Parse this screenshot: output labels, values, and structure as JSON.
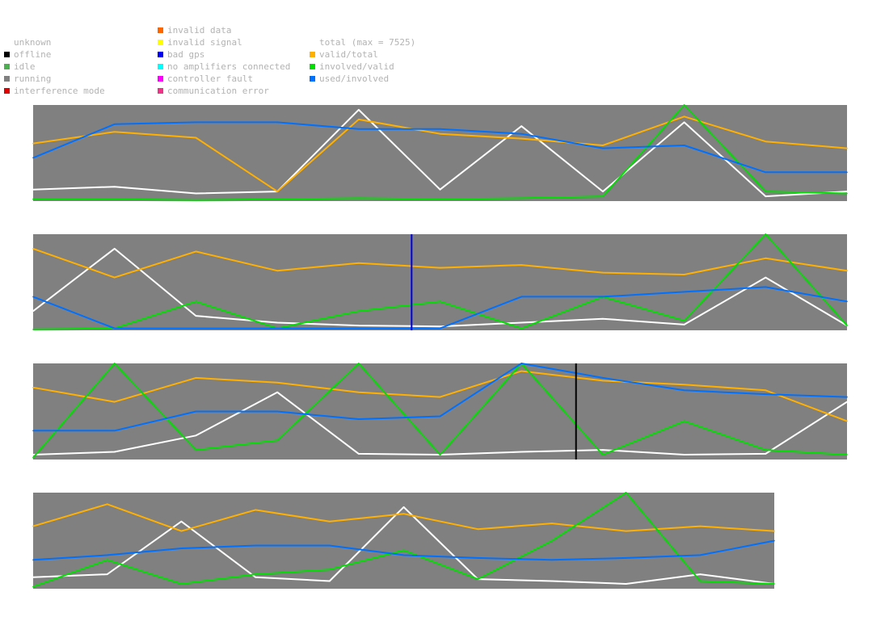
{
  "legend": {
    "columns": [
      [
        {
          "label": "unknown",
          "color": null
        },
        {
          "label": "offline",
          "color": "#000000"
        },
        {
          "label": "idle",
          "color": "#4caf50"
        },
        {
          "label": "running",
          "color": "#808080"
        },
        {
          "label": "interference mode",
          "color": "#e00000"
        }
      ],
      [
        {
          "label": "invalid data",
          "color": "#ff6600"
        },
        {
          "label": "invalid signal",
          "color": "#ffff00"
        },
        {
          "label": "bad gps",
          "color": "#0000ee"
        },
        {
          "label": "no amplifiers connected",
          "color": "#00ffff"
        },
        {
          "label": "controller fault",
          "color": "#ff00ff"
        },
        {
          "label": "communication error",
          "color": "#ee3388"
        }
      ],
      [
        {
          "label": "total (max = 7525)",
          "color": null
        },
        {
          "label": "valid/total",
          "color": "#ffb000"
        },
        {
          "label": "involved/valid",
          "color": "#00e000"
        },
        {
          "label": "used/involved",
          "color": "#0070ff"
        }
      ]
    ]
  },
  "colors": {
    "panel_background": "#808080",
    "total": "#ffffff",
    "valid_total": "#ffb000",
    "involved_valid": "#00e000",
    "used_involved": "#0070ff",
    "bad_gps_marker": "#0000ee",
    "offline_marker": "#000000"
  },
  "chart_data": [
    {
      "type": "line",
      "ylim": [
        0,
        1
      ],
      "x": [
        0,
        0.1,
        0.2,
        0.3,
        0.4,
        0.5,
        0.6,
        0.7,
        0.8,
        0.9,
        1.0
      ],
      "series": [
        {
          "name": "total (max = 7525)",
          "values": [
            0.12,
            0.15,
            0.08,
            0.1,
            0.95,
            0.12,
            0.78,
            0.1,
            0.82,
            0.05,
            0.1
          ]
        },
        {
          "name": "valid/total",
          "values": [
            0.6,
            0.72,
            0.66,
            0.1,
            0.85,
            0.7,
            0.65,
            0.58,
            0.88,
            0.62,
            0.55
          ]
        },
        {
          "name": "involved/valid",
          "values": [
            0.02,
            0.02,
            0.01,
            0.02,
            0.03,
            0.02,
            0.03,
            0.05,
            1.0,
            0.1,
            0.08
          ]
        },
        {
          "name": "used/involved",
          "values": [
            0.45,
            0.8,
            0.82,
            0.82,
            0.75,
            0.75,
            0.7,
            0.55,
            0.58,
            0.3,
            0.3
          ]
        }
      ]
    },
    {
      "type": "line",
      "ylim": [
        0,
        1
      ],
      "x": [
        0,
        0.1,
        0.2,
        0.3,
        0.4,
        0.5,
        0.6,
        0.7,
        0.8,
        0.9,
        1.0
      ],
      "markers": [
        {
          "x": 0.465,
          "status": "bad gps"
        }
      ],
      "series": [
        {
          "name": "total (max = 7525)",
          "values": [
            0.2,
            0.85,
            0.15,
            0.08,
            0.05,
            0.04,
            0.08,
            0.12,
            0.06,
            0.55,
            0.05
          ]
        },
        {
          "name": "valid/total",
          "values": [
            0.85,
            0.55,
            0.82,
            0.62,
            0.7,
            0.65,
            0.68,
            0.6,
            0.58,
            0.75,
            0.62
          ]
        },
        {
          "name": "involved/valid",
          "values": [
            0.01,
            0.02,
            0.3,
            0.02,
            0.2,
            0.3,
            0.02,
            0.35,
            0.1,
            1.0,
            0.05
          ]
        },
        {
          "name": "used/involved",
          "values": [
            0.35,
            0.02,
            0.02,
            0.02,
            0.02,
            0.02,
            0.35,
            0.35,
            0.4,
            0.45,
            0.3
          ]
        }
      ]
    },
    {
      "type": "line",
      "ylim": [
        0,
        1
      ],
      "x": [
        0,
        0.1,
        0.2,
        0.3,
        0.4,
        0.5,
        0.6,
        0.7,
        0.8,
        0.9,
        1.0
      ],
      "markers": [
        {
          "x": 0.667,
          "status": "offline"
        }
      ],
      "series": [
        {
          "name": "total (max = 7525)",
          "values": [
            0.05,
            0.08,
            0.25,
            0.7,
            0.06,
            0.05,
            0.08,
            0.1,
            0.05,
            0.06,
            0.6
          ]
        },
        {
          "name": "valid/total",
          "values": [
            0.75,
            0.6,
            0.85,
            0.8,
            0.7,
            0.65,
            0.92,
            0.82,
            0.78,
            0.72,
            0.4
          ]
        },
        {
          "name": "involved/valid",
          "values": [
            0.02,
            1.0,
            0.1,
            0.2,
            1.0,
            0.05,
            1.0,
            0.05,
            0.4,
            0.1,
            0.05
          ]
        },
        {
          "name": "used/involved",
          "values": [
            0.3,
            0.3,
            0.5,
            0.5,
            0.42,
            0.45,
            1.0,
            0.85,
            0.72,
            0.68,
            0.65
          ]
        }
      ]
    },
    {
      "type": "line",
      "ylim": [
        0,
        1
      ],
      "x": [
        0,
        0.1,
        0.2,
        0.3,
        0.4,
        0.5,
        0.6,
        0.7,
        0.8,
        0.9,
        1.0
      ],
      "series": [
        {
          "name": "total (max = 7525)",
          "values": [
            0.12,
            0.15,
            0.7,
            0.12,
            0.08,
            0.85,
            0.1,
            0.08,
            0.05,
            0.15,
            0.05
          ]
        },
        {
          "name": "valid/total",
          "values": [
            0.65,
            0.88,
            0.6,
            0.82,
            0.7,
            0.78,
            0.62,
            0.68,
            0.6,
            0.65,
            0.6
          ]
        },
        {
          "name": "involved/valid",
          "values": [
            0.02,
            0.3,
            0.05,
            0.15,
            0.2,
            0.4,
            0.1,
            0.5,
            1.0,
            0.08,
            0.05
          ]
        },
        {
          "name": "used/involved",
          "values": [
            0.3,
            0.35,
            0.42,
            0.45,
            0.45,
            0.35,
            0.32,
            0.3,
            0.32,
            0.35,
            0.5
          ]
        }
      ]
    }
  ]
}
